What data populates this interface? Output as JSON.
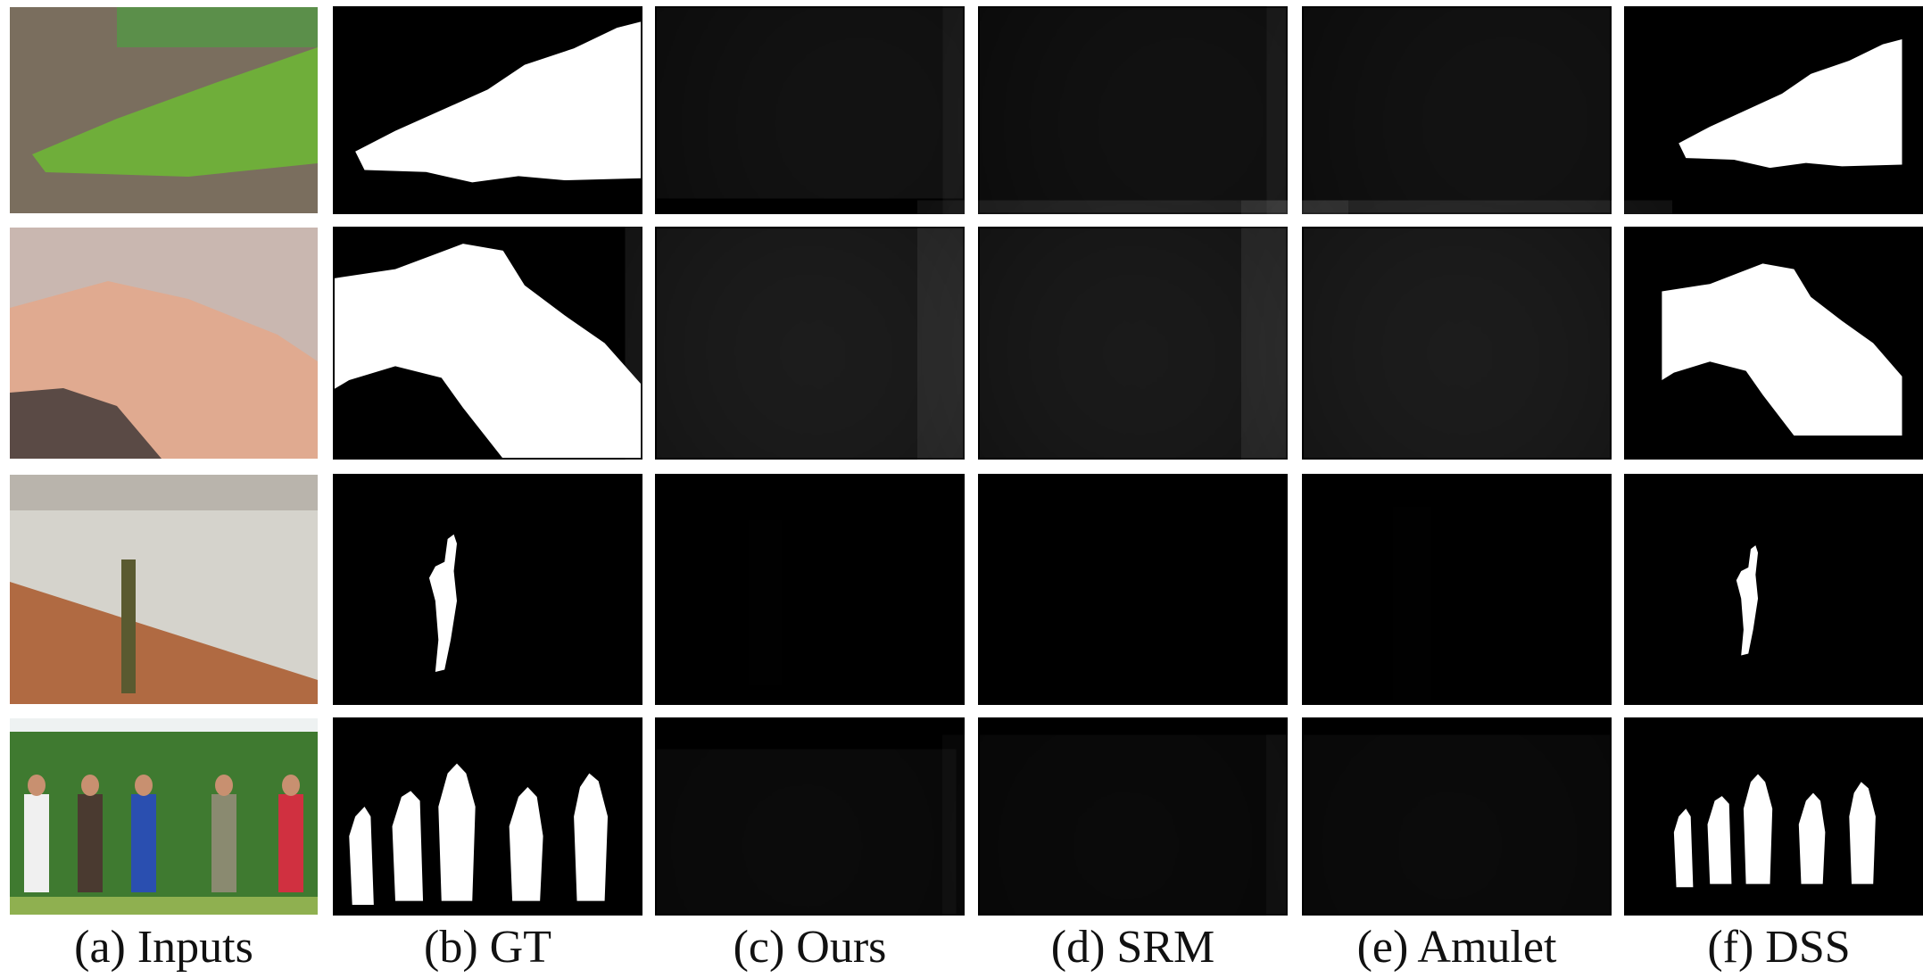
{
  "figure": {
    "captions": [
      "(a) Inputs",
      "(b) GT",
      "(c) Ours",
      "(d) SRM",
      "(e) Amulet",
      "(f) DSS"
    ]
  }
}
